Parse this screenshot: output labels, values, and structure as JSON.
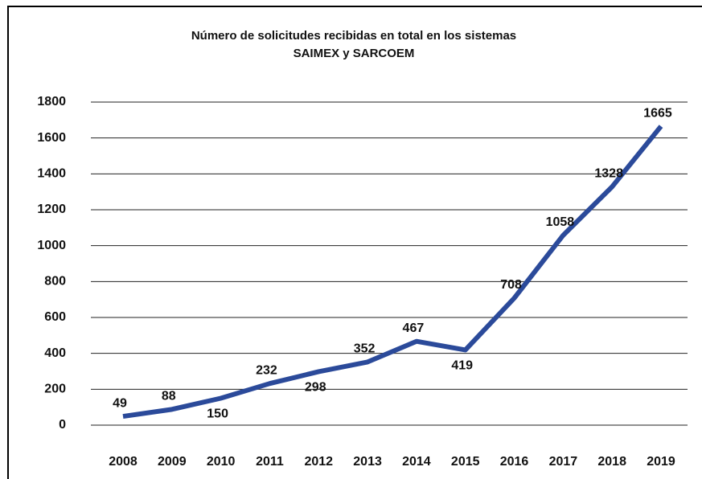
{
  "chart_data": {
    "type": "line",
    "title": [
      "Número de solicitudes recibidas en total en los sistemas",
      "SAIMEX y SARCOEM"
    ],
    "categories": [
      "2008",
      "2009",
      "2010",
      "2011",
      "2012",
      "2013",
      "2014",
      "2015",
      "2016",
      "2017",
      "2018",
      "2019"
    ],
    "series": [
      {
        "color": "#2b4a9a",
        "values": [
          49,
          88,
          150,
          232,
          298,
          352,
          467,
          419,
          708,
          1058,
          1328,
          1665
        ]
      }
    ],
    "ylim": [
      0,
      1800
    ],
    "yticks": [
      0,
      200,
      400,
      600,
      800,
      1000,
      1200,
      1400,
      1600,
      1800
    ],
    "grid": true
  }
}
